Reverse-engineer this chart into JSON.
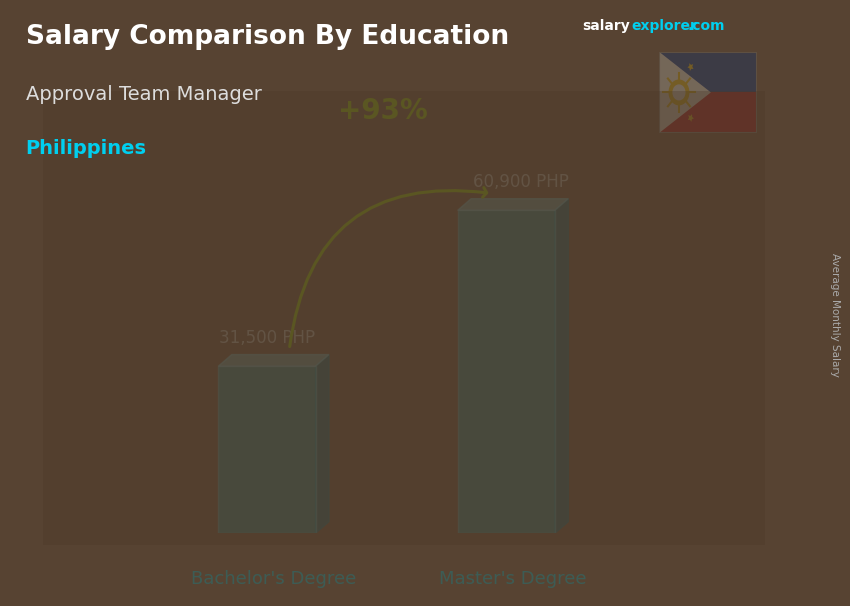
{
  "title_main": "Salary Comparison By Education",
  "subtitle": "Approval Team Manager",
  "country": "Philippines",
  "categories": [
    "Bachelor's Degree",
    "Master's Degree"
  ],
  "values": [
    31500,
    60900
  ],
  "value_labels": [
    "31,500 PHP",
    "60,900 PHP"
  ],
  "pct_change": "+93%",
  "bar_color_face": "#00CFEF",
  "bar_alpha": 0.55,
  "bar_width": 0.13,
  "bar_positions": [
    0.3,
    0.62
  ],
  "country_color": "#00CFEF",
  "pct_color": "#AAEE00",
  "value_label_color": "#DDDDDD",
  "xlabel_color": "#00CFEF",
  "ylabel_text": "Average Monthly Salary",
  "ylabel_color": "#AAAAAA",
  "bg_color": "#5a4a3a",
  "overlay_color": "#2a1f15",
  "title_color": "#FFFFFF",
  "subtitle_color": "#DDDDDD",
  "salary_color": "#FFFFFF",
  "explorer_color": "#00CFEF",
  "ylim": [
    0,
    80000
  ],
  "fig_width": 8.5,
  "fig_height": 6.06,
  "dpi": 100
}
